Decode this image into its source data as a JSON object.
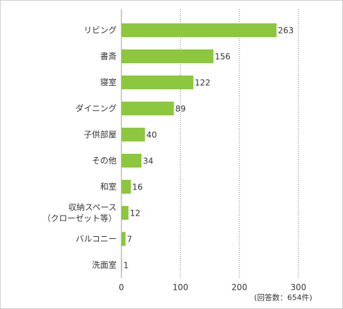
{
  "chart_data": {
    "type": "bar",
    "orientation": "horizontal",
    "categories": [
      "リビング",
      "書斎",
      "寝室",
      "ダイニング",
      "子供部屋",
      "その他",
      "和室",
      "収納スペース\n（クローゼット等）",
      "バルコニー",
      "洗面室"
    ],
    "values": [
      263,
      156,
      122,
      89,
      40,
      34,
      16,
      12,
      7,
      1
    ],
    "color": "#8dc63f",
    "xlim": [
      0,
      300
    ],
    "xticks": [
      0,
      100,
      200,
      300
    ],
    "grid": true,
    "annotation": "(回答数：654件)"
  }
}
